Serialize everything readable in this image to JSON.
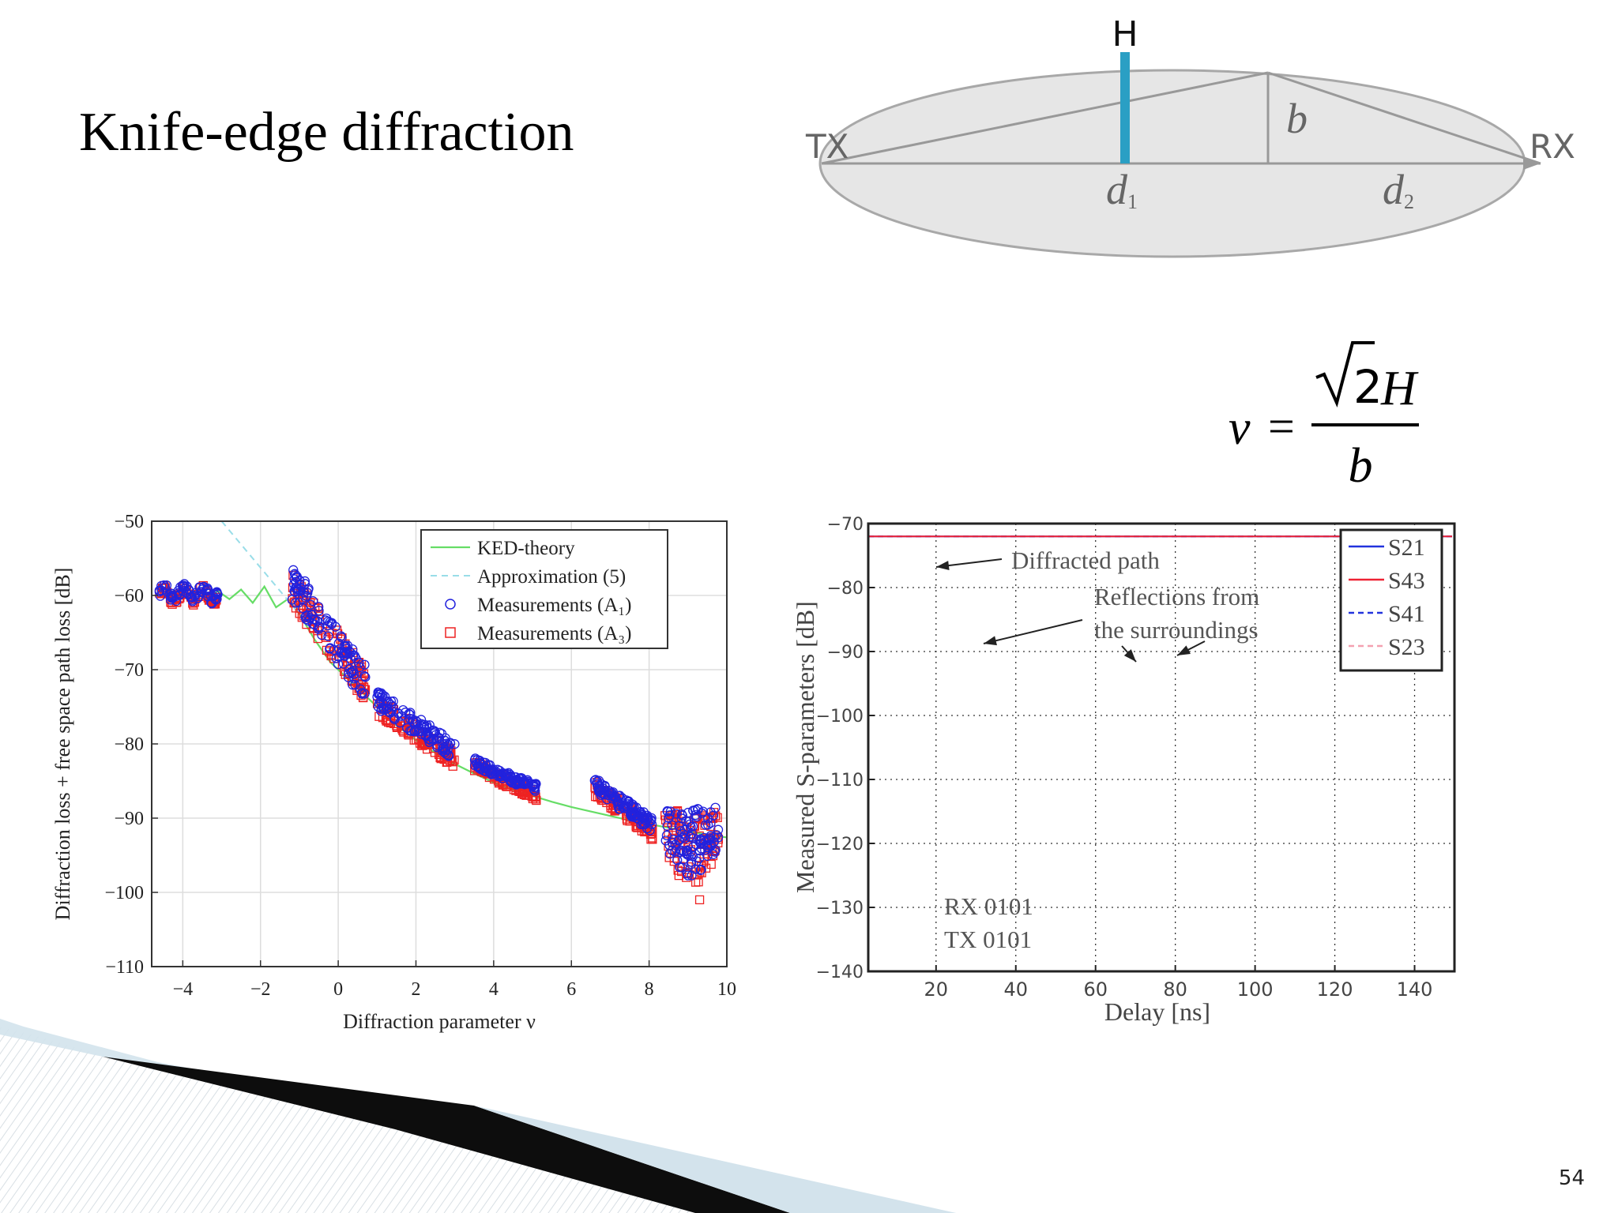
{
  "slide": {
    "title": "Knife-edge diffraction",
    "page_number": "54",
    "colors": {
      "obstacle": "#2a9fc4",
      "ellipse_fill": "#e6e6e6",
      "ellipse_stroke": "#a8a8a8",
      "deco_dark": "#0d0d0d",
      "deco_light": "#d3e3ec"
    }
  },
  "diagram": {
    "labels": {
      "H": "H",
      "b": "b",
      "tx": "TX",
      "rx": "RX",
      "d1": "d",
      "d1_sub": "1",
      "d2": "d",
      "d2_sub": "2"
    }
  },
  "formula": {
    "lhs": "ν",
    "eq": "=",
    "sqrt_arg": "2",
    "numerator_var": "H",
    "denominator": "b"
  },
  "chart_data": [
    {
      "type": "scatter",
      "xlabel": "Diffraction parameter ν",
      "ylabel": "Diffraction loss + free space path loss [dB]",
      "xlim": [
        -4.8,
        10
      ],
      "ylim": [
        -110,
        -50
      ],
      "xticks": [
        -4,
        -2,
        0,
        2,
        4,
        6,
        8,
        10
      ],
      "yticks": [
        -110,
        -100,
        -90,
        -80,
        -70,
        -60,
        -50
      ],
      "xtick_labels": [
        "−4",
        "−2",
        "0",
        "2",
        "4",
        "6",
        "8",
        "10"
      ],
      "ytick_labels": [
        "−110",
        "−100",
        "−90",
        "−80",
        "−70",
        "−60",
        "−50"
      ],
      "grid": true,
      "legend_position": "top-right",
      "series": [
        {
          "name": "KED-theory",
          "style": "line",
          "color": "#66dd66",
          "x": [
            -4.6,
            -4.3,
            -4.0,
            -3.7,
            -3.4,
            -3.1,
            -2.8,
            -2.5,
            -2.2,
            -1.9,
            -1.6,
            -1.3,
            -1.0,
            -0.6,
            -0.2,
            0.2,
            0.6,
            1.0,
            1.5,
            2.0,
            2.5,
            3.0,
            3.5,
            4.0,
            4.5,
            5.0,
            5.5,
            6.0,
            6.5,
            7.0,
            7.5,
            8.0,
            8.5,
            9.0,
            9.5,
            10.0
          ],
          "y": [
            -60,
            -59.6,
            -60.4,
            -59.5,
            -60.6,
            -59.4,
            -60.5,
            -59.2,
            -61,
            -58.8,
            -61.6,
            -60.5,
            -62.5,
            -66,
            -69,
            -71,
            -73,
            -75,
            -77.5,
            -79.5,
            -81.2,
            -82.7,
            -84,
            -85.2,
            -86.2,
            -87,
            -87.8,
            -88.5,
            -89.1,
            -89.7,
            -90.3,
            -90.8,
            -91.3,
            -91.8,
            -92.2,
            -92.6
          ]
        },
        {
          "name": "Approximation (5)",
          "style": "dashed",
          "color": "#99dde8",
          "x": [
            -3.0,
            -2.6,
            -2.2,
            -1.8,
            -1.4,
            -1.0
          ],
          "y": [
            -50,
            -52.5,
            -55,
            -57.5,
            -60,
            -62.5
          ]
        },
        {
          "name": "Measurements (A₁)",
          "style": "circle",
          "color": "#2222dd",
          "clusters": [
            {
              "x": [
                -4.6,
                -3.1
              ],
              "y": [
                -61,
                -58.5
              ]
            },
            {
              "x": [
                -1.2,
                0.7
              ],
              "y": [
                -72,
                -58
              ]
            },
            {
              "x": [
                1.0,
                3.0
              ],
              "y": [
                -81,
                -74
              ]
            },
            {
              "x": [
                3.5,
                5.1
              ],
              "y": [
                -86,
                -82.5
              ]
            },
            {
              "x": [
                6.6,
                8.1
              ],
              "y": [
                -91,
                -85.5
              ]
            },
            {
              "x": [
                8.4,
                9.8
              ],
              "y": [
                -98,
                -88.5
              ]
            }
          ]
        },
        {
          "name": "Measurements (A₃)",
          "style": "square",
          "color": "#ee2222",
          "clusters": [
            {
              "x": [
                -4.6,
                -3.1
              ],
              "y": [
                -61,
                -59
              ]
            },
            {
              "x": [
                -1.2,
                0.7
              ],
              "y": [
                -72,
                -59
              ]
            },
            {
              "x": [
                1.0,
                3.0
              ],
              "y": [
                -82,
                -75
              ]
            },
            {
              "x": [
                3.5,
                5.1
              ],
              "y": [
                -87,
                -83
              ]
            },
            {
              "x": [
                6.6,
                8.1
              ],
              "y": [
                -92,
                -86
              ]
            },
            {
              "x": [
                8.4,
                9.8
              ],
              "y": [
                -99,
                -89
              ]
            }
          ],
          "outlier": {
            "x": 9.3,
            "y": -101
          }
        }
      ]
    },
    {
      "type": "line",
      "xlabel": "Delay [ns]",
      "ylabel": "Measured S-parameters [dB]",
      "xlim": [
        3,
        150
      ],
      "ylim": [
        -140,
        -70
      ],
      "xticks": [
        20,
        40,
        60,
        80,
        100,
        120,
        140
      ],
      "yticks": [
        -140,
        -130,
        -120,
        -110,
        -100,
        -90,
        -80,
        -70
      ],
      "xtick_labels": [
        "20",
        "40",
        "60",
        "80",
        "100",
        "120",
        "140"
      ],
      "ytick_labels": [
        "−140",
        "−130",
        "−120",
        "−110",
        "−100",
        "−90",
        "−80",
        "−70"
      ],
      "grid": true,
      "legend_position": "top-right",
      "annotations": [
        {
          "text": "Diffracted path",
          "x": 20,
          "y": -75
        },
        {
          "text": "Reflections from",
          "x": 60,
          "y": -80
        },
        {
          "text": "the surroundings",
          "x": 60,
          "y": -85
        },
        {
          "text": "RX 0101",
          "x": 20,
          "y": -129
        },
        {
          "text": "TX 0101",
          "x": 20,
          "y": -134
        }
      ],
      "series": [
        {
          "name": "S21",
          "style": "solid",
          "color": "#2233dd"
        },
        {
          "name": "S43",
          "style": "solid",
          "color": "#ee2233"
        },
        {
          "name": "S41",
          "style": "dashed",
          "color": "#2233dd"
        },
        {
          "name": "S23",
          "style": "dashed",
          "color": "#f4a0b0"
        }
      ]
    }
  ]
}
